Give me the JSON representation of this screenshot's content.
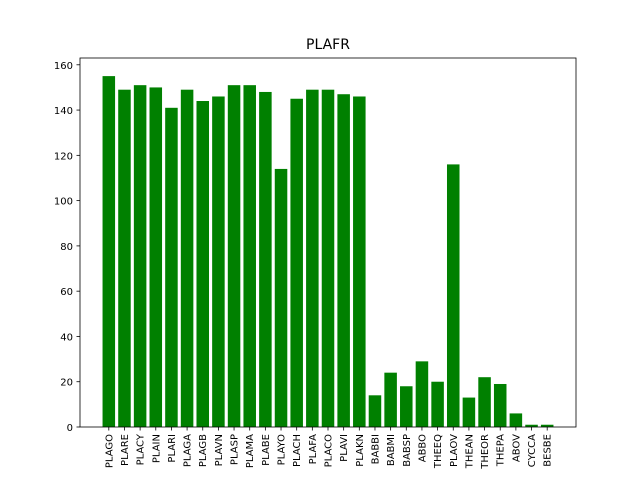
{
  "chart_data": {
    "type": "bar",
    "title": "PLAFR",
    "xlabel": "",
    "ylabel": "",
    "categories": [
      "PLAGO",
      "PLARE",
      "PLACY",
      "PLAIN",
      "PLARI",
      "PLAGA",
      "PLAGB",
      "PLAVN",
      "PLASP",
      "PLAMA",
      "PLABE",
      "PLAYO",
      "PLACH",
      "PLAFA",
      "PLACO",
      "PLAVI",
      "PLAKN",
      "BABBI",
      "BABMI",
      "BABSP",
      "ABBO",
      "THEEQ",
      "PLAOV",
      "THEAN",
      "THEOR",
      "THEPA",
      "ABOV",
      "CYCCA",
      "BESBE"
    ],
    "values": [
      155,
      149,
      151,
      150,
      141,
      149,
      144,
      146,
      151,
      151,
      148,
      114,
      145,
      149,
      149,
      147,
      146,
      14,
      24,
      18,
      29,
      20,
      116,
      13,
      22,
      19,
      6,
      1,
      1
    ],
    "ylim": [
      0,
      163
    ],
    "yticks": [
      0,
      20,
      40,
      60,
      80,
      100,
      120,
      140,
      160
    ],
    "bar_color": "#008000",
    "grid": false
  }
}
